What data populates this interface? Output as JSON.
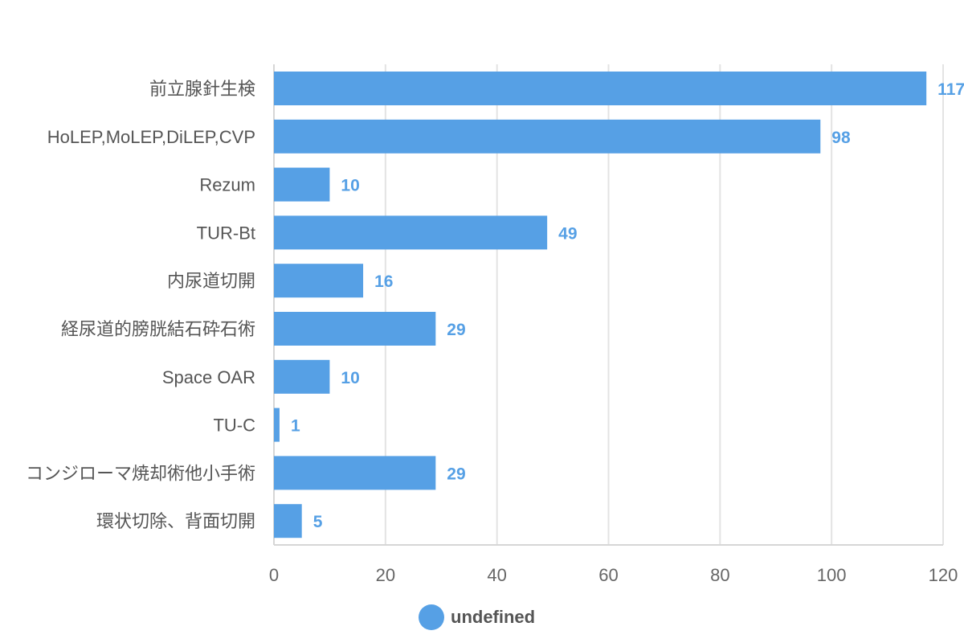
{
  "chart_data": {
    "type": "bar",
    "orientation": "horizontal",
    "categories": [
      "前立腺針生検",
      "HoLEP,MoLEP,DiLEP,CVP",
      "Rezum",
      "TUR-Bt",
      "内尿道切開",
      "経尿道的膀胱結石砕石術",
      "Space OAR",
      "TU-C",
      "コンジローマ焼却術他小手術",
      "環状切除、背面切開"
    ],
    "series": [
      {
        "name": "undefined",
        "values": [
          117,
          98,
          10,
          49,
          16,
          29,
          10,
          1,
          29,
          5
        ]
      }
    ],
    "xlim": [
      0,
      120
    ],
    "xticks": [
      0,
      20,
      40,
      60,
      80,
      100,
      120
    ],
    "grid": true,
    "legend_position": "bottom",
    "bar_color": "#56a0e5",
    "value_label_color": "#56a0e5"
  }
}
